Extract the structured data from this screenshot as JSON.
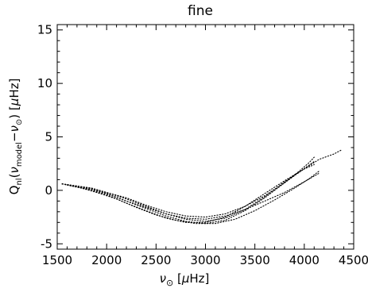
{
  "chart_data": {
    "type": "scatter",
    "title": "fine",
    "xlabel": "νo [μHz]",
    "ylabel": "Qnl(νmodel−νo) [μHz]",
    "xlim": [
      1500,
      4500
    ],
    "ylim": [
      -5.5,
      15.5
    ],
    "xticks": [
      1500,
      2000,
      2500,
      3000,
      3500,
      4000,
      4500
    ],
    "yticks": [
      -5,
      0,
      5,
      10,
      15
    ],
    "grid": false,
    "series": [
      {
        "line_style": "dotted",
        "points": [
          [
            1550,
            0.6
          ],
          [
            1700,
            0.4
          ],
          [
            1850,
            0.2
          ],
          [
            2000,
            -0.2
          ],
          [
            2200,
            -0.8
          ],
          [
            2400,
            -1.5
          ],
          [
            2600,
            -2.2
          ],
          [
            2800,
            -2.7
          ],
          [
            3000,
            -2.9
          ],
          [
            3200,
            -2.6
          ],
          [
            3400,
            -1.8
          ],
          [
            3600,
            -0.6
          ],
          [
            3800,
            0.8
          ],
          [
            4000,
            2.0
          ],
          [
            4150,
            2.9
          ],
          [
            4300,
            3.4
          ],
          [
            4380,
            3.8
          ]
        ]
      },
      {
        "line_style": "dotted",
        "points": [
          [
            1550,
            0.6
          ],
          [
            1700,
            0.4
          ],
          [
            1850,
            0.1
          ],
          [
            2000,
            -0.3
          ],
          [
            2200,
            -1.0
          ],
          [
            2400,
            -1.7
          ],
          [
            2600,
            -2.4
          ],
          [
            2800,
            -2.9
          ],
          [
            3000,
            -3.1
          ],
          [
            3200,
            -2.8
          ],
          [
            3400,
            -1.9
          ],
          [
            3600,
            -0.7
          ],
          [
            3800,
            0.7
          ],
          [
            3950,
            1.8
          ],
          [
            4050,
            2.6
          ],
          [
            4100,
            3.1
          ]
        ]
      },
      {
        "line_style": "dotted",
        "points": [
          [
            1550,
            0.6
          ],
          [
            1700,
            0.3
          ],
          [
            1850,
            0.0
          ],
          [
            2000,
            -0.4
          ],
          [
            2200,
            -1.2
          ],
          [
            2400,
            -1.9
          ],
          [
            2600,
            -2.6
          ],
          [
            2800,
            -3.0
          ],
          [
            3000,
            -3.0
          ],
          [
            3200,
            -2.5
          ],
          [
            3400,
            -1.5
          ],
          [
            3600,
            -0.3
          ],
          [
            3800,
            0.9
          ],
          [
            4000,
            2.0
          ],
          [
            4100,
            2.4
          ]
        ]
      },
      {
        "line_style": "dotted",
        "points": [
          [
            1550,
            0.6
          ],
          [
            1700,
            0.3
          ],
          [
            1850,
            0.1
          ],
          [
            2000,
            -0.3
          ],
          [
            2200,
            -1.0
          ],
          [
            2400,
            -1.6
          ],
          [
            2600,
            -2.2
          ],
          [
            2800,
            -2.6
          ],
          [
            3000,
            -2.7
          ],
          [
            3200,
            -2.4
          ],
          [
            3400,
            -1.8
          ],
          [
            3600,
            -1.0
          ],
          [
            3800,
            -0.2
          ],
          [
            4000,
            0.8
          ],
          [
            4150,
            1.6
          ]
        ]
      },
      {
        "line_style": "dotted",
        "points": [
          [
            1550,
            0.6
          ],
          [
            1700,
            0.4
          ],
          [
            1850,
            0.2
          ],
          [
            2000,
            -0.2
          ],
          [
            2200,
            -0.7
          ],
          [
            2400,
            -1.4
          ],
          [
            2600,
            -2.0
          ],
          [
            2800,
            -2.4
          ],
          [
            3000,
            -2.5
          ],
          [
            3200,
            -2.2
          ],
          [
            3400,
            -1.5
          ],
          [
            3600,
            -0.5
          ],
          [
            3800,
            0.7
          ],
          [
            3950,
            1.7
          ],
          [
            4100,
            2.7
          ]
        ]
      },
      {
        "line_style": "dotted",
        "points": [
          [
            1600,
            0.5
          ],
          [
            1750,
            0.2
          ],
          [
            1900,
            -0.2
          ],
          [
            2100,
            -0.8
          ],
          [
            2300,
            -1.6
          ],
          [
            2500,
            -2.3
          ],
          [
            2700,
            -2.8
          ],
          [
            2900,
            -3.1
          ],
          [
            3100,
            -3.1
          ],
          [
            3300,
            -2.7
          ],
          [
            3500,
            -1.9
          ],
          [
            3700,
            -0.9
          ],
          [
            3900,
            0.2
          ],
          [
            4050,
            1.1
          ],
          [
            4150,
            1.8
          ]
        ]
      }
    ]
  }
}
